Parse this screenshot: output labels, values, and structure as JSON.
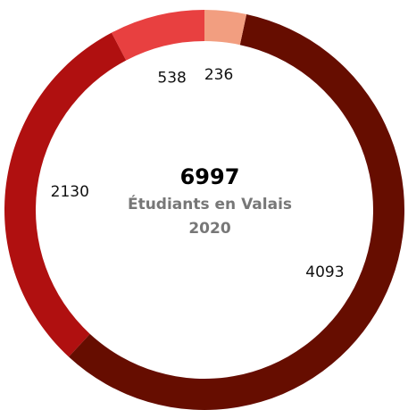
{
  "chart_data": {
    "type": "donut",
    "total": 6997,
    "title": "Étudiants en Valais",
    "subtitle": "2020",
    "categories": [
      null,
      null,
      null,
      null
    ],
    "values": [
      236,
      4093,
      2130,
      538
    ],
    "colors": [
      "#f29e80",
      "#660d00",
      "#b01010",
      "#e84040"
    ]
  }
}
